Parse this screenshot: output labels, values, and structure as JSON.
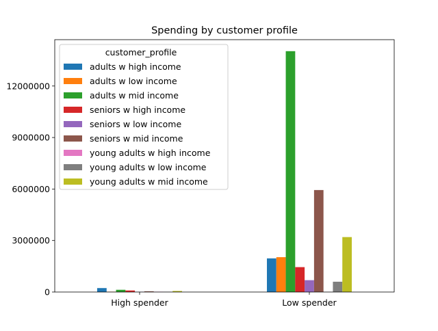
{
  "chart_data": {
    "type": "bar",
    "title": "Spending by customer profile",
    "xlabel": "",
    "ylabel": "",
    "categories": [
      "High spender",
      "Low spender"
    ],
    "ylim": [
      0,
      14700000
    ],
    "yticks": [
      0,
      3000000,
      6000000,
      9000000,
      12000000
    ],
    "ytick_labels": [
      "0",
      "3000000",
      "6000000",
      "9000000",
      "12000000"
    ],
    "grid": false,
    "legend": {
      "title": "customer_profile",
      "placement": "upper-left"
    },
    "series": [
      {
        "name": "adults w high income",
        "color": "#1f77b4",
        "values": [
          230000,
          1960000
        ]
      },
      {
        "name": "adults w low income",
        "color": "#ff7f0e",
        "values": [
          20000,
          2030000
        ]
      },
      {
        "name": "adults w mid income",
        "color": "#2ca02c",
        "values": [
          130000,
          14030000
        ]
      },
      {
        "name": "seniors w high income",
        "color": "#d62728",
        "values": [
          90000,
          1450000
        ]
      },
      {
        "name": "seniors w low income",
        "color": "#9467bd",
        "values": [
          15000,
          690000
        ]
      },
      {
        "name": "seniors w mid income",
        "color": "#8c564b",
        "values": [
          40000,
          5940000
        ]
      },
      {
        "name": "young adults w high income",
        "color": "#e377c2",
        "values": [
          20000,
          5000
        ]
      },
      {
        "name": "young adults w low income",
        "color": "#7f7f7f",
        "values": [
          10000,
          600000
        ]
      },
      {
        "name": "young adults w mid income",
        "color": "#bcbd22",
        "values": [
          60000,
          3200000
        ]
      }
    ]
  }
}
